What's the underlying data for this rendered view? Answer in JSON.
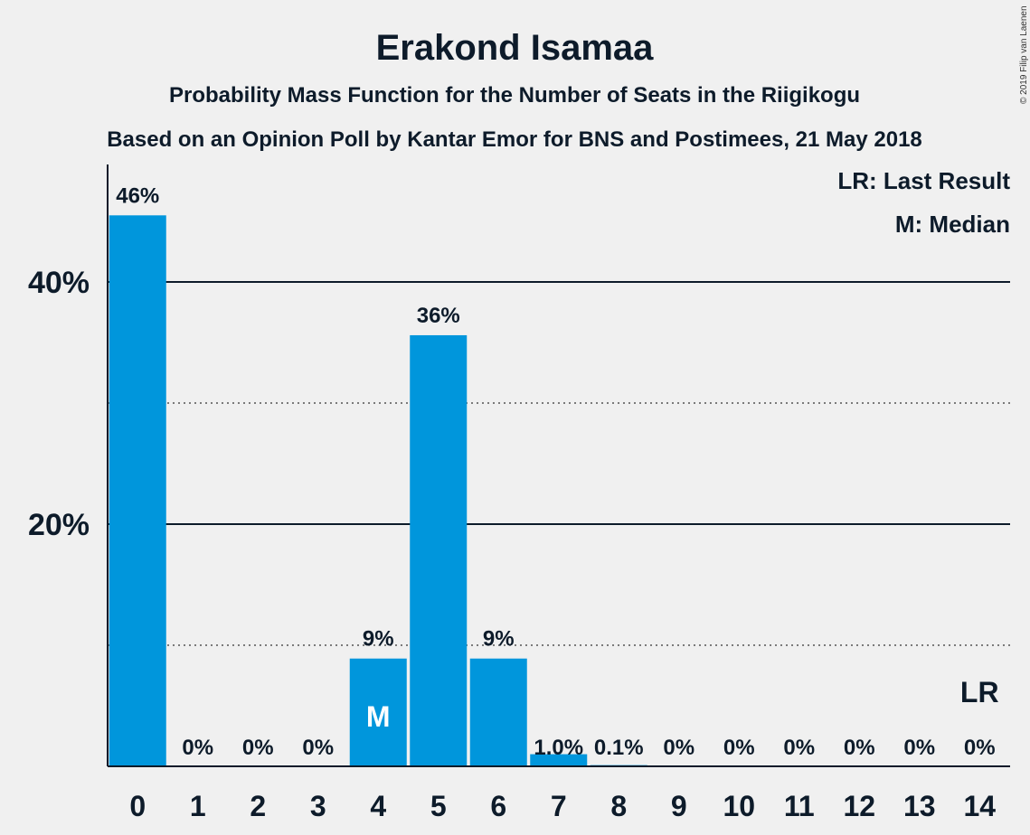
{
  "chart_data": {
    "type": "bar",
    "title": "Erakond Isamaa",
    "subtitle": "Probability Mass Function for the Number of Seats in the Riigikogu",
    "subtitle2": "Based on an Opinion Poll by Kantar Emor for BNS and Postimees, 21 May 2018",
    "categories": [
      "0",
      "1",
      "2",
      "3",
      "4",
      "5",
      "6",
      "7",
      "8",
      "9",
      "10",
      "11",
      "12",
      "13",
      "14"
    ],
    "values": [
      45.5,
      0,
      0,
      0,
      8.9,
      35.6,
      8.9,
      1.0,
      0.1,
      0,
      0,
      0,
      0,
      0,
      0
    ],
    "data_labels": [
      "46%",
      "0%",
      "0%",
      "0%",
      "9%",
      "36%",
      "9%",
      "1.0%",
      "0.1%",
      "0%",
      "0%",
      "0%",
      "0%",
      "0%",
      "0%"
    ],
    "ylim": [
      0,
      50
    ],
    "yticks": [
      20,
      40
    ],
    "ytick_labels": [
      "20%",
      "40%"
    ],
    "minor_gridlines": [
      10,
      30
    ],
    "median_seat": 4,
    "median_marker": "M",
    "last_result_seat": 14,
    "last_result_marker": "LR",
    "legend": [
      "LR: Last Result",
      "M: Median"
    ],
    "legend_position": "top-right",
    "bar_color": "#0096dc",
    "copyright": "© 2019 Filip van Laenen"
  }
}
